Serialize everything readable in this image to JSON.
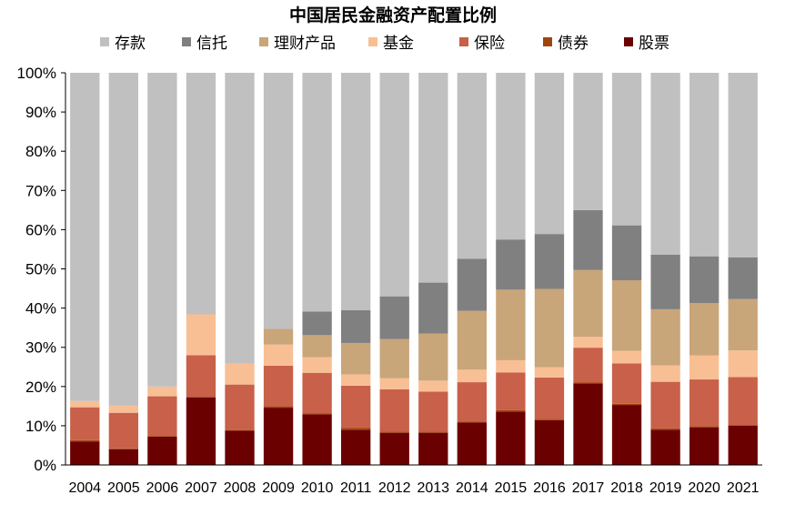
{
  "chart_data": {
    "type": "bar",
    "stacked": true,
    "title": "中国居民金融资产配置比例",
    "legend_position": "top",
    "grid": false,
    "ylim": [
      0,
      100
    ],
    "y_ticks": [
      "0%",
      "10%",
      "20%",
      "30%",
      "40%",
      "50%",
      "60%",
      "70%",
      "80%",
      "90%",
      "100%"
    ],
    "categories": [
      "2004",
      "2005",
      "2006",
      "2007",
      "2008",
      "2009",
      "2010",
      "2011",
      "2012",
      "2013",
      "2014",
      "2015",
      "2016",
      "2017",
      "2018",
      "2019",
      "2020",
      "2021"
    ],
    "series": [
      {
        "name": "股票",
        "color": "#6b0000",
        "values": [
          6,
          4,
          7.2,
          17.2,
          8.7,
          14.6,
          12.9,
          9,
          8.2,
          8.2,
          10.8,
          13.6,
          11.4,
          20.8,
          15.3,
          9,
          9.6,
          10
        ]
      },
      {
        "name": "债券",
        "color": "#a0450e",
        "values": [
          0.3,
          0.2,
          0.2,
          0.2,
          0.2,
          0.4,
          0.3,
          0.4,
          0.3,
          0.3,
          0.3,
          0.4,
          0.3,
          0.2,
          0.3,
          0.3,
          0.3,
          0.2
        ]
      },
      {
        "name": "保险",
        "color": "#c8604a",
        "values": [
          8.4,
          9.1,
          10.1,
          10.6,
          11.6,
          10.3,
          10.3,
          10.8,
          10.8,
          10.2,
          10,
          9.6,
          10.6,
          8.9,
          10.3,
          11.9,
          11.9,
          12.2
        ]
      },
      {
        "name": "基金",
        "color": "#f8bf94",
        "values": [
          1.6,
          1.8,
          2.5,
          10.4,
          5.3,
          5.4,
          4,
          2.9,
          2.8,
          2.8,
          3.2,
          3.1,
          2.6,
          2.8,
          3.2,
          4.2,
          6.1,
          6.8
        ]
      },
      {
        "name": "理财产品",
        "color": "#c9a57a",
        "values": [
          0,
          0,
          0,
          0,
          0,
          4,
          5.6,
          8,
          10,
          12,
          15,
          18,
          20,
          17,
          18,
          14.3,
          13.4,
          13.1
        ]
      },
      {
        "name": "信托",
        "color": "#808080",
        "values": [
          0,
          0,
          0,
          0,
          0,
          0,
          6,
          8.4,
          10.9,
          13,
          13.3,
          12.8,
          14,
          15.3,
          14,
          13.9,
          11.9,
          10.6
        ]
      },
      {
        "name": "存款",
        "color": "#c0c0c0",
        "values": [
          83.7,
          84.9,
          80,
          61.6,
          74.2,
          65.3,
          60.9,
          60.5,
          57,
          53.5,
          47.4,
          42.5,
          41.1,
          35,
          38.9,
          46.4,
          46.8,
          47.1
        ]
      }
    ],
    "legend_order": [
      "存款",
      "信托",
      "理财产品",
      "基金",
      "保险",
      "债券",
      "股票"
    ]
  }
}
